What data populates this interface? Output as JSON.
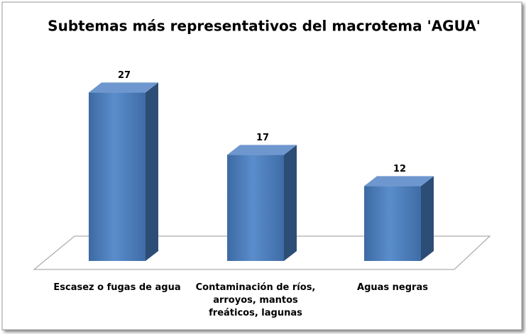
{
  "chart_data": {
    "type": "bar3d",
    "title": "Subtemas más representativos del macrotema 'AGUA'",
    "categories": [
      "Escasez o fugas de agua",
      "Contaminación de ríos, arroyos, mantos freáticos, lagunas",
      "Aguas negras"
    ],
    "values": [
      27,
      17,
      12
    ],
    "color": "#4f81bd"
  }
}
